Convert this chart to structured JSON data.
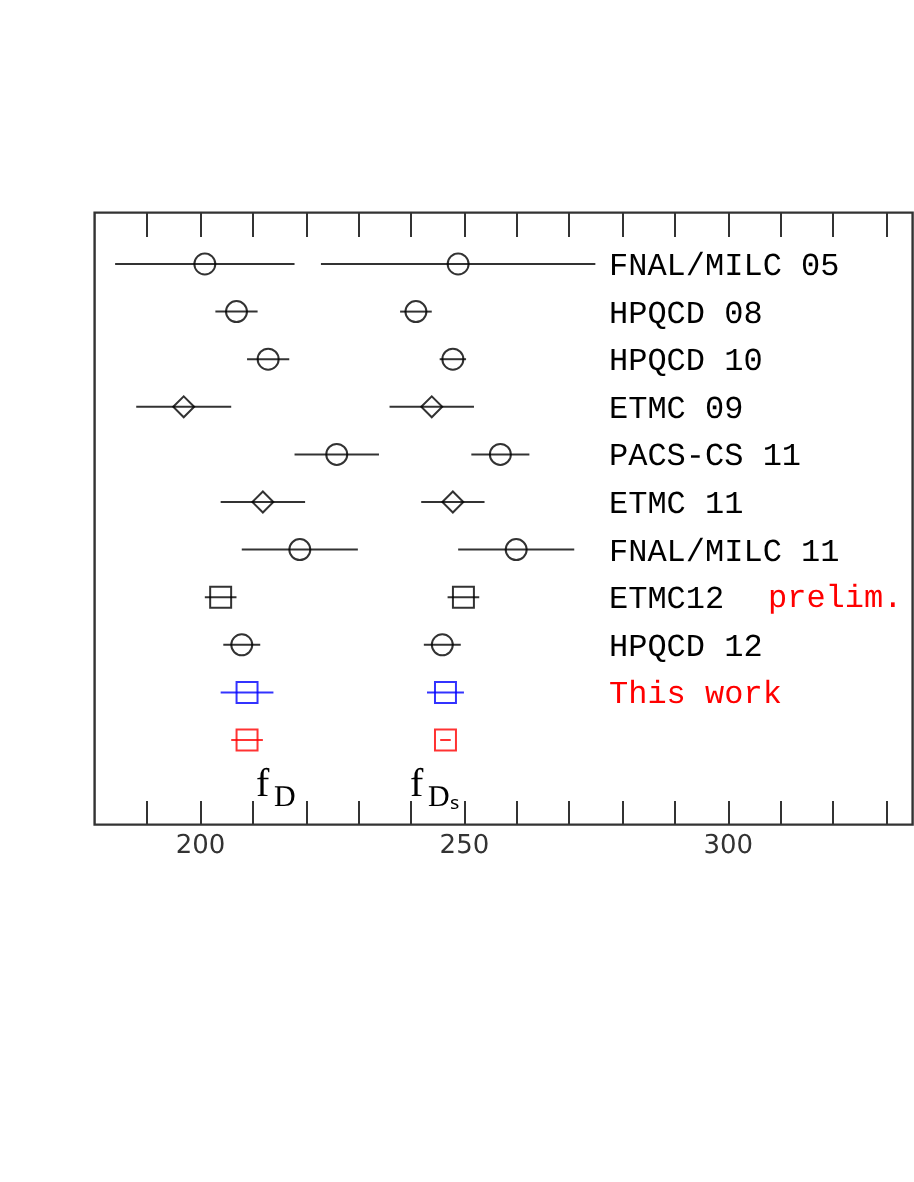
{
  "chart_data": {
    "type": "scatter",
    "orientation": "horizontal",
    "categories": [
      "FNAL/MILC 05",
      "HPQCD 08",
      "HPQCD 10",
      "ETMC 09",
      "PACS-CS 11",
      "ETMC 11",
      "FNAL/MILC 11",
      "ETMC12",
      "HPQCD 12",
      "This work",
      null
    ],
    "xlim": [
      180,
      335
    ],
    "xticks": [
      {
        "value": 190,
        "label": null
      },
      200,
      {
        "value": 210,
        "label": null
      },
      {
        "value": 220,
        "label": null
      },
      {
        "value": 230,
        "label": null
      },
      {
        "value": 240,
        "label": null
      },
      250,
      {
        "value": 260,
        "label": null
      },
      {
        "value": 270,
        "label": null
      },
      {
        "value": 280,
        "label": null
      },
      {
        "value": 290,
        "label": null
      },
      300,
      {
        "value": 310,
        "label": null
      },
      {
        "value": 320,
        "label": null
      },
      {
        "value": 330,
        "label": null
      }
    ],
    "series": [
      {
        "color": "#000000",
        "marker": "circle",
        "values": [
          201,
          207,
          213,
          null,
          226,
          null,
          219,
          null,
          208,
          null,
          null
        ],
        "errors": [
          17,
          4,
          4,
          null,
          8,
          null,
          11,
          null,
          3.5,
          null,
          null
        ]
      },
      {
        "color": "#000000",
        "marker": "circle",
        "values": [
          249,
          241,
          248,
          null,
          257,
          null,
          260,
          null,
          246,
          null,
          null
        ],
        "errors": [
          [
            223,
            275
          ],
          3,
          2.5,
          null,
          5.5,
          null,
          11,
          null,
          3.5,
          null,
          null
        ]
      },
      {
        "color": "#000000",
        "marker": "diamond",
        "values": [
          null,
          null,
          null,
          197,
          null,
          212,
          null,
          null,
          null,
          null,
          null
        ],
        "errors": [
          null,
          null,
          null,
          9,
          null,
          8,
          null,
          null,
          null,
          null,
          null
        ]
      },
      {
        "color": "#000000",
        "marker": "diamond",
        "values": [
          null,
          null,
          null,
          244,
          null,
          248,
          null,
          null,
          null,
          null,
          null
        ],
        "errors": [
          null,
          null,
          null,
          8,
          null,
          6,
          null,
          null,
          null,
          null,
          null
        ]
      },
      {
        "color": "#000000",
        "marker": "square",
        "values": [
          null,
          null,
          null,
          null,
          null,
          null,
          null,
          204,
          null,
          null,
          null
        ],
        "errors": [
          null,
          null,
          null,
          null,
          null,
          null,
          null,
          3,
          null,
          null,
          null
        ]
      },
      {
        "color": "#000000",
        "marker": "square",
        "values": [
          null,
          null,
          null,
          null,
          null,
          null,
          null,
          250,
          null,
          null,
          null
        ],
        "errors": [
          null,
          null,
          null,
          null,
          null,
          null,
          null,
          3,
          null,
          null,
          null
        ]
      },
      {
        "color": "#0000ff",
        "marker": "square",
        "values": [
          null,
          null,
          null,
          null,
          null,
          null,
          null,
          null,
          null,
          209,
          null
        ],
        "errors": [
          null,
          null,
          null,
          null,
          null,
          null,
          null,
          null,
          null,
          5,
          null
        ]
      },
      {
        "color": "#0000ff",
        "marker": "square",
        "values": [
          null,
          null,
          null,
          null,
          null,
          null,
          null,
          null,
          null,
          246.6,
          null
        ],
        "errors": [
          null,
          null,
          null,
          null,
          null,
          null,
          null,
          null,
          null,
          3.5,
          null
        ]
      },
      {
        "color": "#ff0000",
        "marker": "square",
        "values": [
          null,
          null,
          null,
          null,
          null,
          null,
          null,
          null,
          null,
          null,
          209
        ],
        "errors": [
          null,
          null,
          null,
          null,
          null,
          null,
          null,
          null,
          null,
          null,
          3
        ]
      },
      {
        "color": "#ff0000",
        "marker": "square",
        "values": [
          null,
          null,
          null,
          null,
          null,
          null,
          null,
          null,
          null,
          null,
          246.6
        ],
        "errors": [
          null,
          null,
          null,
          null,
          null,
          null,
          null,
          null,
          null,
          null,
          1
        ]
      }
    ],
    "annotations": [
      "prelim.",
      "f$_{D}$",
      "f$_{Dₛ}$"
    ]
  }
}
